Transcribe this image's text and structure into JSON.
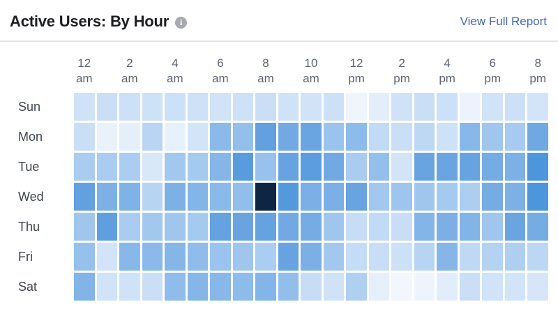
{
  "header": {
    "title": "Active Users: By Hour",
    "info_icon_glyph": "i",
    "link_label": "View Full Report"
  },
  "colors": {
    "title_text": "#1c1e21",
    "link_blue": "#4267b2",
    "axis_text": "#5d6470",
    "row_label_text": "#3e434c",
    "info_icon_bg": "#a6a9ae",
    "divider": "#e5e5e5",
    "cell_gap": "#ffffff"
  },
  "chart_data": {
    "type": "heatmap",
    "title": "Active Users: By Hour",
    "row_labels": [
      "Sun",
      "Mon",
      "Tue",
      "Wed",
      "Thu",
      "Fri",
      "Sat"
    ],
    "columns_hours": [
      "12am",
      "1am",
      "2am",
      "3am",
      "4am",
      "5am",
      "6am",
      "7am",
      "8am",
      "9am",
      "10am",
      "11am",
      "12pm",
      "1pm",
      "2pm",
      "3pm",
      "4pm",
      "5pm",
      "6pm",
      "7pm",
      "8pm"
    ],
    "x_axis": {
      "tick_labels_line1": [
        "12",
        "2",
        "4",
        "6",
        "8",
        "10",
        "12",
        "2",
        "4",
        "6",
        "8"
      ],
      "tick_labels_line2": [
        "am",
        "am",
        "am",
        "am",
        "am",
        "am",
        "pm",
        "pm",
        "pm",
        "pm",
        "pm"
      ],
      "tick_positions_hour_index": [
        0,
        2,
        4,
        6,
        8,
        10,
        12,
        14,
        16,
        18,
        20
      ]
    },
    "values_note": "Relative activity intensity 0-100 estimated from cell shading; the chart shows no numeric labels.",
    "values": [
      [
        25,
        28,
        27,
        26,
        27,
        26,
        24,
        26,
        28,
        25,
        24,
        27,
        4,
        12,
        25,
        28,
        27,
        6,
        24,
        27,
        22
      ],
      [
        28,
        8,
        11,
        37,
        9,
        23,
        61,
        57,
        79,
        72,
        75,
        54,
        60,
        33,
        28,
        35,
        26,
        62,
        51,
        47,
        73
      ],
      [
        46,
        46,
        45,
        18,
        49,
        48,
        63,
        83,
        55,
        77,
        82,
        72,
        46,
        57,
        22,
        76,
        75,
        77,
        70,
        67,
        88
      ],
      [
        79,
        67,
        66,
        38,
        67,
        64,
        61,
        58,
        100,
        85,
        68,
        68,
        76,
        49,
        52,
        51,
        48,
        44,
        70,
        67,
        88
      ],
      [
        51,
        80,
        46,
        49,
        51,
        48,
        78,
        76,
        78,
        72,
        70,
        51,
        30,
        33,
        29,
        64,
        68,
        65,
        51,
        75,
        70
      ],
      [
        56,
        22,
        62,
        61,
        63,
        59,
        54,
        51,
        45,
        77,
        68,
        49,
        31,
        29,
        27,
        38,
        63,
        34,
        40,
        43,
        36
      ],
      [
        65,
        24,
        25,
        28,
        59,
        63,
        62,
        60,
        64,
        58,
        30,
        25,
        42,
        10,
        2,
        5,
        13,
        28,
        24,
        23,
        20
      ]
    ],
    "max_cell": {
      "row": "Wed",
      "hour": "8am",
      "value": 100
    },
    "color_stops": [
      [
        0,
        "#f5f9fd"
      ],
      [
        30,
        "#c7ddf6"
      ],
      [
        55,
        "#98c2ed"
      ],
      [
        75,
        "#6ba5e1"
      ],
      [
        88,
        "#4e96dc"
      ],
      [
        100,
        "#0e2644"
      ]
    ],
    "legend": "none",
    "grid_gap": "white"
  }
}
